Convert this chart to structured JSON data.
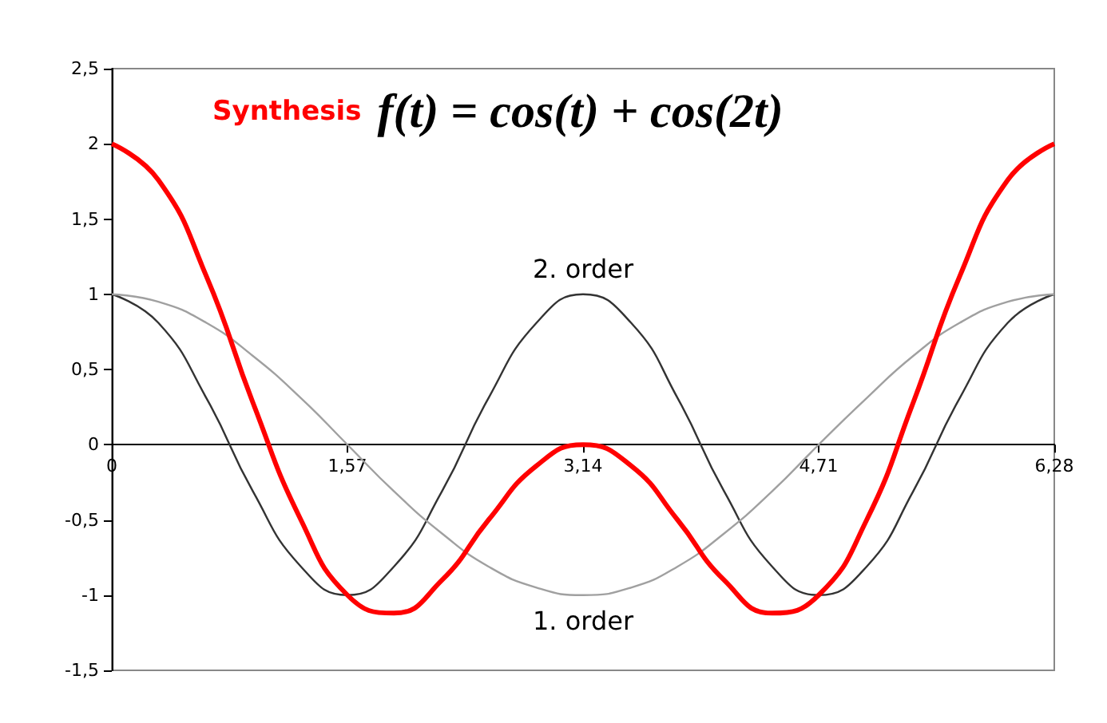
{
  "chart_data": {
    "type": "line",
    "title": "f(t) = cos(t) + cos(2t)",
    "x": [
      0,
      0.31,
      0.63,
      0.94,
      1.26,
      1.57,
      1.88,
      2.2,
      2.51,
      2.83,
      3.14,
      3.46,
      3.77,
      4.08,
      4.4,
      4.71,
      5.03,
      5.34,
      5.65,
      5.97,
      6.28
    ],
    "series": [
      {
        "name": "Synthesis",
        "color": "#ff0000",
        "values": [
          2,
          1.76,
          1.12,
          0.28,
          -0.5,
          -1,
          -1.12,
          -0.9,
          -0.5,
          -0.14,
          0,
          -0.14,
          -0.5,
          -0.9,
          -1.12,
          -1,
          -0.5,
          0.28,
          1.12,
          1.76,
          2
        ]
      },
      {
        "name": "2. order",
        "color": "#333333",
        "values": [
          1,
          0.81,
          0.31,
          -0.31,
          -0.81,
          -1,
          -0.81,
          -0.31,
          0.31,
          0.81,
          1,
          0.81,
          0.31,
          -0.31,
          -0.81,
          -1,
          -0.81,
          -0.31,
          0.31,
          0.81,
          1
        ]
      },
      {
        "name": "1. order",
        "color": "#a0a0a0",
        "values": [
          1,
          0.95,
          0.81,
          0.59,
          0.31,
          0,
          -0.31,
          -0.59,
          -0.81,
          -0.95,
          -1,
          -0.95,
          -0.81,
          -0.59,
          -0.31,
          0,
          0.31,
          0.59,
          0.81,
          0.95,
          1
        ]
      }
    ],
    "xlim": [
      0,
      6.28
    ],
    "xticks": [
      {
        "value": 0,
        "label": "0"
      },
      {
        "value": 1.57,
        "label": "1,57"
      },
      {
        "value": 3.14,
        "label": "3,14"
      },
      {
        "value": 4.71,
        "label": "4,71"
      },
      {
        "value": 6.28,
        "label": "6,28"
      }
    ],
    "ylim": [
      -1.5,
      2.5
    ],
    "yticks": [
      {
        "value": -1.5,
        "label": "-1,5"
      },
      {
        "value": -1,
        "label": "-1"
      },
      {
        "value": -0.5,
        "label": "-0,5"
      },
      {
        "value": 0,
        "label": "0"
      },
      {
        "value": 0.5,
        "label": "0,5"
      },
      {
        "value": 1,
        "label": "1"
      },
      {
        "value": 1.5,
        "label": "1,5"
      },
      {
        "value": 2,
        "label": "2"
      },
      {
        "value": 2.5,
        "label": "2,5"
      }
    ],
    "legend": false,
    "marker": "none",
    "line_style": "solid"
  }
}
